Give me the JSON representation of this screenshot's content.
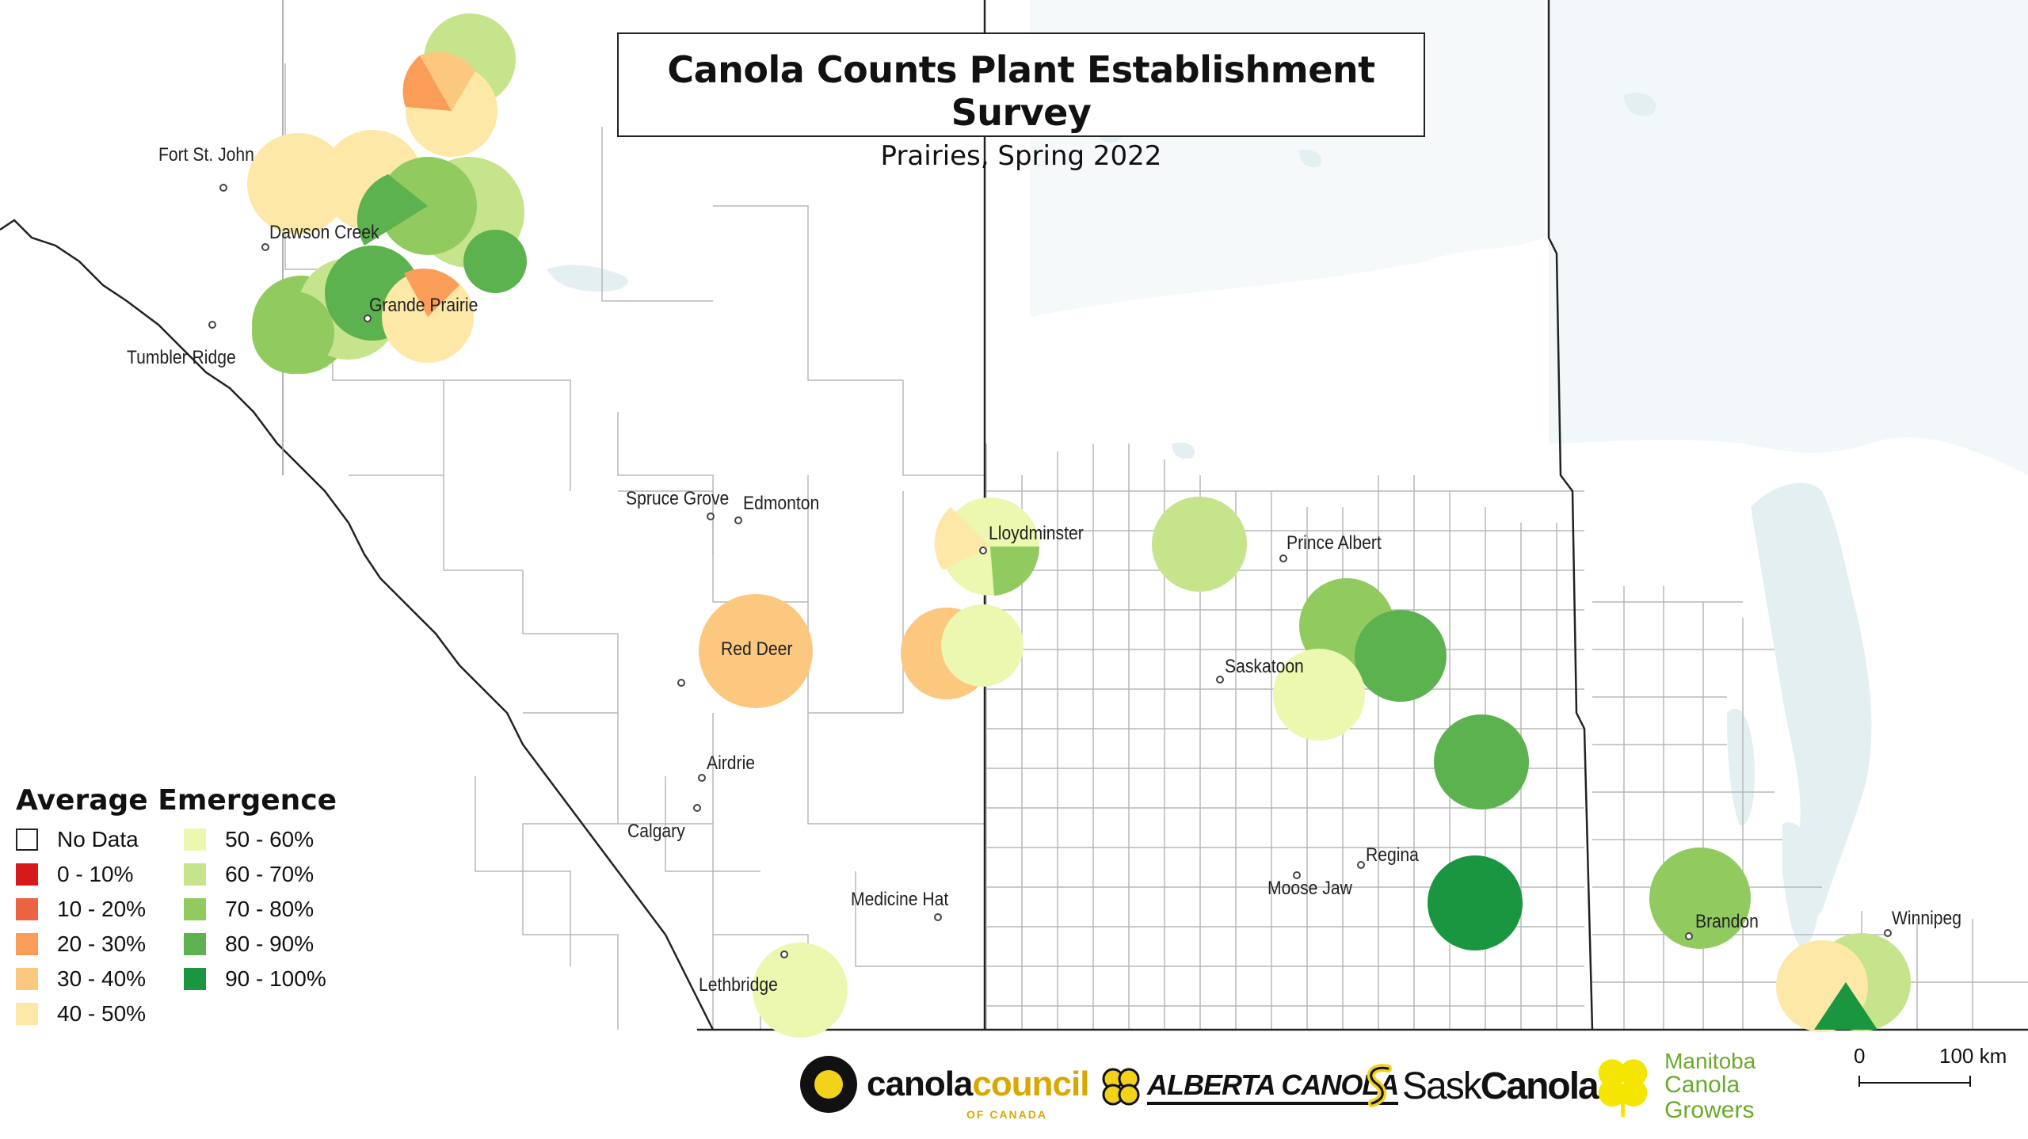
{
  "title": "Canola Counts Plant Establishment Survey",
  "subtitle": "Prairies, Spring 2022",
  "legend": {
    "title": "Average Emergence",
    "items": [
      {
        "label": "No Data",
        "color": "#ffffff"
      },
      {
        "label": "0 - 10%",
        "color": "#d7191c"
      },
      {
        "label": "10 - 20%",
        "color": "#ea6343"
      },
      {
        "label": "20 - 30%",
        "color": "#f99d59"
      },
      {
        "label": "30 - 40%",
        "color": "#fcc77f"
      },
      {
        "label": "40 - 50%",
        "color": "#fee8a8"
      },
      {
        "label": "50 - 60%",
        "color": "#ecf7b0"
      },
      {
        "label": "60 - 70%",
        "color": "#c6e48b"
      },
      {
        "label": "70 - 80%",
        "color": "#91cb60"
      },
      {
        "label": "80 - 90%",
        "color": "#5cb24e"
      },
      {
        "label": "90 - 100%",
        "color": "#1a9641"
      }
    ]
  },
  "cities": {
    "fort_st_john": "Fort St. John",
    "dawson_creek": "Dawson Creek",
    "grande_prairie": "Grande Prairie",
    "tumbler_ridge": "Tumbler Ridge",
    "spruce_grove": "Spruce Grove",
    "edmonton": "Edmonton",
    "lloydminster": "Lloydminster",
    "red_deer": "Red Deer",
    "airdrie": "Airdrie",
    "calgary": "Calgary",
    "medicine_hat": "Medicine Hat",
    "lethbridge": "Lethbridge",
    "prince_albert": "Prince Albert",
    "saskatoon": "Saskatoon",
    "regina": "Regina",
    "moose_jaw": "Moose Jaw",
    "brandon": "Brandon",
    "winnipeg": "Winnipeg"
  },
  "logos": {
    "canola_council": {
      "part1": "canola",
      "part2": "council",
      "sub": "OF CANADA"
    },
    "alberta_canola": "ALBERTA CANOLA",
    "sask_canola": {
      "part1": "Sask",
      "part2": "Canola"
    },
    "manitoba": {
      "line1": "Manitoba",
      "line2": "Canola Growers"
    }
  },
  "scale": {
    "zero": "0",
    "end": "100 km"
  },
  "colors": {
    "boundary": "#aaaaaa",
    "province_border": "#222222",
    "water": "#e3eff1"
  }
}
